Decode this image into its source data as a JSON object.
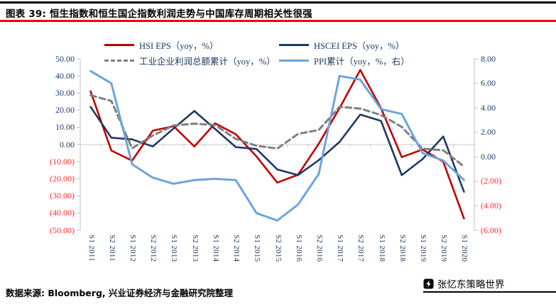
{
  "header": {
    "title": "图表 39: 恒生指数和恒生国企指数利润走势与中国库存周期相关性很强"
  },
  "colors": {
    "top_rule": "#000000",
    "accent_rule": "#F00000",
    "tick_positive": "#1F3864",
    "tick_negative": "#FF2A2A",
    "zero_line": "#C9C9C9",
    "axis_spine": "#BFBFBF"
  },
  "chart_data": {
    "type": "line",
    "title": "恒生指数和恒生国企指数利润走势与中国库存周期相关性很强",
    "legend_position": "top",
    "grid": "zero-line-only",
    "categories": [
      "S1 2011",
      "S2 2011",
      "S1 2012",
      "S2 2012",
      "S1 2013",
      "S2 2013",
      "S1 2014",
      "S2 2014",
      "S1 2015",
      "S2 2015",
      "S1 2016",
      "S2 2016",
      "S1 2017",
      "S2 2017",
      "S1 2018",
      "S2 2018",
      "S1 2019",
      "S2 2019",
      "S1 2020"
    ],
    "series": [
      {
        "id": "hsi",
        "name": "HSI EPS（yoy，%）",
        "axis": "left",
        "color": "#C00000",
        "style": "solid",
        "values": [
          31.0,
          -3.5,
          -9.4,
          8.1,
          10.7,
          -1.1,
          12.4,
          6.0,
          -7.0,
          -22.2,
          -17.6,
          0.5,
          21.2,
          43.5,
          21.2,
          -7.3,
          -2.9,
          -10.0,
          -43.1
        ]
      },
      {
        "id": "hscei",
        "name": "HSCEI EPS（yoy，%）",
        "axis": "left",
        "color": "#1F3864",
        "style": "solid",
        "values": [
          22.0,
          4.0,
          3.0,
          -1.1,
          9.4,
          19.6,
          9.1,
          -1.5,
          -2.6,
          -14.5,
          -17.8,
          -9.1,
          1.5,
          17.5,
          13.8,
          -17.8,
          -8.5,
          4.7,
          -27.5
        ]
      },
      {
        "id": "industrial-profit",
        "name": "工业企业利润总额累计（yoy，%）",
        "axis": "left",
        "color": "#7F7F7F",
        "style": "dashed",
        "values": [
          28.7,
          25.4,
          -2.2,
          5.3,
          11.1,
          12.2,
          11.4,
          3.3,
          -0.7,
          -2.3,
          6.2,
          8.5,
          22.0,
          21.0,
          17.2,
          10.3,
          -2.4,
          -3.3,
          -12.8
        ]
      },
      {
        "id": "ppi",
        "name": "PPI累计（yoy，%，右）",
        "axis": "right",
        "color": "#6CA5DA",
        "style": "solid",
        "values": [
          7.0,
          6.0,
          -0.6,
          -1.7,
          -2.2,
          -1.9,
          -1.8,
          -1.9,
          -4.6,
          -5.2,
          -3.9,
          -1.4,
          6.6,
          6.3,
          3.9,
          3.5,
          0.3,
          -0.3,
          -1.9
        ]
      }
    ],
    "left_axis": {
      "min": -50,
      "max": 50,
      "ticks": [
        "50.00",
        "40.00",
        "30.00",
        "20.00",
        "10.00",
        "0.00",
        "(10.00)",
        "(20.00)",
        "(30.00)",
        "(40.00)",
        "(50.00)"
      ]
    },
    "right_axis": {
      "min": -6,
      "max": 8,
      "ticks": [
        "8.00",
        "6.00",
        "4.00",
        "2.00",
        "0.00",
        "(2.00)",
        "(4.00)",
        "(6.00)"
      ]
    }
  },
  "footer": {
    "source": "数据来源: Bloomberg, 兴业证券经济与金融研究院整理",
    "brand": "张忆东策略世界"
  }
}
